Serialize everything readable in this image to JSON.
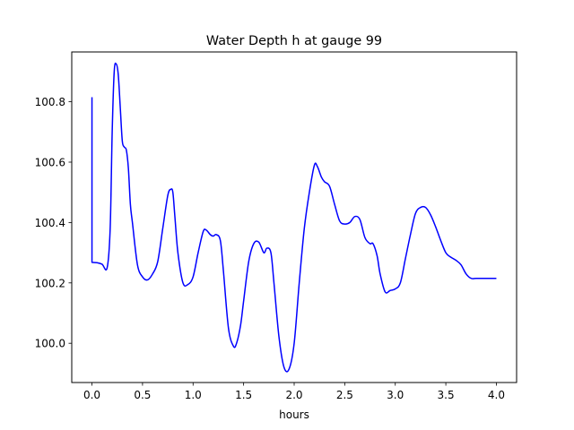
{
  "chart_data": {
    "type": "line",
    "title": "Water Depth h at gauge 99",
    "xlabel": "hours",
    "ylabel": "",
    "xlim": [
      -0.2,
      4.2
    ],
    "ylim": [
      99.87,
      100.965
    ],
    "xticks": [
      0.0,
      0.5,
      1.0,
      1.5,
      2.0,
      2.5,
      3.0,
      3.5,
      4.0
    ],
    "xtick_labels": [
      "0.0",
      "0.5",
      "1.0",
      "1.5",
      "2.0",
      "2.5",
      "3.0",
      "3.5",
      "4.0"
    ],
    "yticks": [
      100.0,
      100.2,
      100.4,
      100.6,
      100.8
    ],
    "ytick_labels": [
      "100.0",
      "100.2",
      "100.4",
      "100.6",
      "100.8"
    ],
    "grid": false,
    "series": [
      {
        "color": "#0000ff",
        "x": [
          0.0,
          0.0,
          0.05,
          0.1,
          0.15,
          0.18,
          0.2,
          0.22,
          0.24,
          0.26,
          0.28,
          0.3,
          0.32,
          0.34,
          0.36,
          0.38,
          0.4,
          0.45,
          0.5,
          0.55,
          0.6,
          0.65,
          0.7,
          0.75,
          0.78,
          0.8,
          0.82,
          0.85,
          0.9,
          0.95,
          1.0,
          1.05,
          1.1,
          1.13,
          1.17,
          1.2,
          1.23,
          1.27,
          1.3,
          1.35,
          1.4,
          1.43,
          1.47,
          1.5,
          1.55,
          1.6,
          1.65,
          1.7,
          1.73,
          1.77,
          1.8,
          1.85,
          1.9,
          1.95,
          2.0,
          2.05,
          2.1,
          2.15,
          2.2,
          2.23,
          2.27,
          2.3,
          2.35,
          2.4,
          2.45,
          2.5,
          2.55,
          2.6,
          2.65,
          2.7,
          2.75,
          2.78,
          2.82,
          2.85,
          2.9,
          2.95,
          3.0,
          3.05,
          3.1,
          3.15,
          3.2,
          3.25,
          3.3,
          3.35,
          3.4,
          3.45,
          3.5,
          3.55,
          3.6,
          3.65,
          3.7,
          3.75,
          3.8,
          3.85,
          3.9,
          3.95,
          4.0
        ],
        "values": [
          100.815,
          100.268,
          100.267,
          100.262,
          100.25,
          100.38,
          100.7,
          100.9,
          100.925,
          100.89,
          100.78,
          100.67,
          100.65,
          100.64,
          100.58,
          100.46,
          100.4,
          100.26,
          100.22,
          100.21,
          100.23,
          100.27,
          100.38,
          100.49,
          100.51,
          100.5,
          100.42,
          100.3,
          100.2,
          100.195,
          100.22,
          100.3,
          100.37,
          100.375,
          100.36,
          100.355,
          100.36,
          100.34,
          100.24,
          100.05,
          99.99,
          100.0,
          100.06,
          100.14,
          100.27,
          100.33,
          100.335,
          100.3,
          100.315,
          100.3,
          100.2,
          100.02,
          99.92,
          99.915,
          100.0,
          100.2,
          100.38,
          100.5,
          100.59,
          100.585,
          100.55,
          100.535,
          100.52,
          100.46,
          100.405,
          100.395,
          100.4,
          100.42,
          100.41,
          100.35,
          100.33,
          100.33,
          100.29,
          100.23,
          100.17,
          100.175,
          100.18,
          100.2,
          100.28,
          100.36,
          100.43,
          100.45,
          100.45,
          100.425,
          100.385,
          100.34,
          100.3,
          100.285,
          100.275,
          100.26,
          100.23,
          100.215,
          100.215,
          100.215,
          100.215,
          100.215,
          100.215
        ]
      }
    ]
  }
}
